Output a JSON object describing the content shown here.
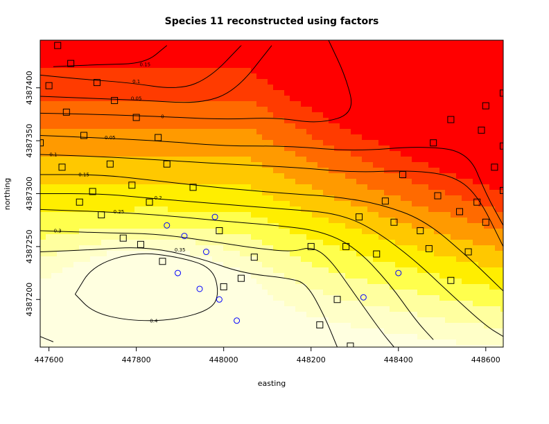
{
  "chart_data": {
    "type": "heatmap",
    "title": "Species 11 reconstructed using factors",
    "xlabel": "easting",
    "ylabel": "northing",
    "xlim": [
      447580,
      448640
    ],
    "ylim": [
      4387155,
      4387445
    ],
    "x_ticks": [
      447600,
      447800,
      448000,
      448200,
      448400,
      448600
    ],
    "y_ticks": [
      4387200,
      4387250,
      4387300,
      4387350,
      4387400
    ],
    "grid": false,
    "color_ramp": [
      "#ff0000",
      "#ff3b00",
      "#ff6a00",
      "#ff9a00",
      "#ffc800",
      "#ffee00",
      "#ffff4d",
      "#ffff9f",
      "#ffffc8",
      "#ffffe0"
    ],
    "contours": [
      {
        "level": "0.15",
        "label": "0.15",
        "points": [
          [
            447610,
            4387420
          ],
          [
            447720,
            4387422
          ],
          [
            447820,
            4387423
          ],
          [
            447870,
            4387440
          ]
        ],
        "label_at": [
          447820,
          4387422
        ]
      },
      {
        "level": "0.1",
        "label": "0.1",
        "points": [
          [
            447580,
            4387412
          ],
          [
            447680,
            4387408
          ],
          [
            447780,
            4387405
          ],
          [
            447900,
            4387398
          ],
          [
            447970,
            4387410
          ],
          [
            448040,
            4387440
          ]
        ],
        "label_at": [
          447800,
          4387406
        ]
      },
      {
        "level": "0.05",
        "label": "0.05",
        "points": [
          [
            447580,
            4387392
          ],
          [
            447700,
            4387390
          ],
          [
            447820,
            4387388
          ],
          [
            447950,
            4387385
          ],
          [
            448030,
            4387398
          ],
          [
            448110,
            4387440
          ]
        ],
        "label_at": [
          447800,
          4387390
        ]
      },
      {
        "level": "0",
        "label": "0",
        "points": [
          [
            447580,
            4387376
          ],
          [
            447700,
            4387375
          ],
          [
            447850,
            4387373
          ],
          [
            448000,
            4387370
          ],
          [
            448120,
            4387372
          ],
          [
            448220,
            4387366
          ],
          [
            448300,
            4387376
          ],
          [
            448280,
            4387410
          ],
          [
            448240,
            4387445
          ]
        ],
        "label_at": [
          447860,
          4387373
        ]
      },
      {
        "level": "0.05",
        "label": "0.05",
        "points": [
          [
            447580,
            4387355
          ],
          [
            447700,
            4387353
          ],
          [
            447850,
            4387350
          ],
          [
            448000,
            4387345
          ],
          [
            448150,
            4387345
          ],
          [
            448300,
            4387340
          ],
          [
            448450,
            4387345
          ],
          [
            448560,
            4387340
          ],
          [
            448600,
            4387300
          ],
          [
            448640,
            4387270
          ]
        ],
        "label_at": [
          447740,
          4387353
        ]
      },
      {
        "level": "0.1",
        "label": "0.1",
        "points": [
          [
            447580,
            4387337
          ],
          [
            447720,
            4387335
          ],
          [
            447850,
            4387332
          ],
          [
            448000,
            4387328
          ],
          [
            448160,
            4387325
          ],
          [
            448300,
            4387320
          ],
          [
            448420,
            4387322
          ],
          [
            448520,
            4387318
          ],
          [
            448580,
            4387300
          ],
          [
            448640,
            4387250
          ]
        ],
        "label_at": [
          447610,
          4387337
        ]
      },
      {
        "level": "0.15",
        "label": "0.15",
        "points": [
          [
            447580,
            4387318
          ],
          [
            447720,
            4387318
          ],
          [
            447850,
            4387312
          ],
          [
            448000,
            4387305
          ],
          [
            448150,
            4387300
          ],
          [
            448260,
            4387297
          ],
          [
            448360,
            4387290
          ],
          [
            448460,
            4387275
          ],
          [
            448560,
            4387240
          ],
          [
            448640,
            4387208
          ]
        ],
        "label_at": [
          447680,
          4387318
        ]
      },
      {
        "level": "0.2",
        "label": "0.2",
        "points": [
          [
            447580,
            4387300
          ],
          [
            447720,
            4387300
          ],
          [
            447850,
            4387295
          ],
          [
            448000,
            4387290
          ],
          [
            448150,
            4387285
          ],
          [
            448250,
            4387282
          ],
          [
            448330,
            4387270
          ],
          [
            448430,
            4387240
          ],
          [
            448520,
            4387205
          ],
          [
            448600,
            4387175
          ],
          [
            448640,
            4387165
          ]
        ],
        "label_at": [
          447850,
          4387296
        ]
      },
      {
        "level": "0.25",
        "label": "0.25",
        "points": [
          [
            447580,
            4387285
          ],
          [
            447720,
            4387283
          ],
          [
            447850,
            4387280
          ],
          [
            448000,
            4387274
          ],
          [
            448120,
            4387270
          ],
          [
            448220,
            4387265
          ],
          [
            448300,
            4387250
          ],
          [
            448380,
            4387215
          ],
          [
            448440,
            4387180
          ],
          [
            448480,
            4387162
          ]
        ],
        "label_at": [
          447760,
          4387283
        ]
      },
      {
        "level": "0.3",
        "label": "0.3",
        "points": [
          [
            447580,
            4387265
          ],
          [
            447720,
            4387263
          ],
          [
            447850,
            4387262
          ],
          [
            447970,
            4387255
          ],
          [
            448080,
            4387248
          ],
          [
            448160,
            4387245
          ],
          [
            448200,
            4387250
          ],
          [
            448240,
            4387240
          ],
          [
            448300,
            4387205
          ],
          [
            448360,
            4387170
          ],
          [
            448390,
            4387155
          ]
        ],
        "label_at": [
          447620,
          4387265
        ]
      },
      {
        "level": "0.35",
        "label": "0.35",
        "points": [
          [
            447580,
            4387245
          ],
          [
            447700,
            4387247
          ],
          [
            447820,
            4387250
          ],
          [
            447940,
            4387240
          ],
          [
            448040,
            4387225
          ],
          [
            448150,
            4387220
          ],
          [
            448190,
            4387215
          ],
          [
            448230,
            4387185
          ],
          [
            448260,
            4387155
          ]
        ],
        "label_at": [
          447900,
          4387247
        ]
      },
      {
        "level": "0.4",
        "label": "0.4",
        "points": [
          [
            447660,
            4387205
          ],
          [
            447700,
            4387232
          ],
          [
            447800,
            4387245
          ],
          [
            447900,
            4387240
          ],
          [
            447975,
            4387230
          ],
          [
            447990,
            4387205
          ],
          [
            447970,
            4387190
          ],
          [
            447880,
            4387180
          ],
          [
            447780,
            4387180
          ],
          [
            447700,
            4387188
          ],
          [
            447660,
            4387205
          ]
        ],
        "label_at": [
          447840,
          4387180
        ]
      },
      {
        "level": "",
        "label": "",
        "points": [
          [
            447580,
            4387165
          ],
          [
            447610,
            4387160
          ]
        ],
        "label_at": null
      }
    ],
    "squares": [
      [
        447620,
        4387440
      ],
      [
        447650,
        4387423
      ],
      [
        447600,
        4387402
      ],
      [
        447710,
        4387405
      ],
      [
        447750,
        4387388
      ],
      [
        447640,
        4387377
      ],
      [
        447800,
        4387372
      ],
      [
        447680,
        4387355
      ],
      [
        447580,
        4387348
      ],
      [
        447850,
        4387353
      ],
      [
        447740,
        4387328
      ],
      [
        447630,
        4387325
      ],
      [
        447870,
        4387328
      ],
      [
        447790,
        4387308
      ],
      [
        447700,
        4387302
      ],
      [
        447930,
        4387306
      ],
      [
        447830,
        4387292
      ],
      [
        447670,
        4387292
      ],
      [
        447720,
        4387280
      ],
      [
        447990,
        4387265
      ],
      [
        447770,
        4387258
      ],
      [
        447810,
        4387252
      ],
      [
        448070,
        4387240
      ],
      [
        448200,
        4387250
      ],
      [
        448280,
        4387250
      ],
      [
        448040,
        4387220
      ],
      [
        447860,
        4387236
      ],
      [
        448000,
        4387212
      ],
      [
        448260,
        4387200
      ],
      [
        448220,
        4387176
      ],
      [
        448290,
        4387156
      ],
      [
        448310,
        4387278
      ],
      [
        448350,
        4387243
      ],
      [
        448370,
        4387293
      ],
      [
        448390,
        4387273
      ],
      [
        448410,
        4387318
      ],
      [
        448450,
        4387265
      ],
      [
        448470,
        4387248
      ],
      [
        448490,
        4387298
      ],
      [
        448520,
        4387218
      ],
      [
        448540,
        4387283
      ],
      [
        448560,
        4387245
      ],
      [
        448580,
        4387292
      ],
      [
        448600,
        4387273
      ],
      [
        448620,
        4387325
      ],
      [
        448640,
        4387303
      ],
      [
        448640,
        4387345
      ],
      [
        448590,
        4387360
      ],
      [
        448640,
        4387395
      ],
      [
        448600,
        4387383
      ],
      [
        448520,
        4387370
      ],
      [
        448480,
        4387348
      ]
    ],
    "circles": [
      [
        447870,
        4387270
      ],
      [
        447910,
        4387260
      ],
      [
        447980,
        4387278
      ],
      [
        447960,
        4387245
      ],
      [
        447895,
        4387225
      ],
      [
        447945,
        4387210
      ],
      [
        447990,
        4387200
      ],
      [
        448030,
        4387180
      ],
      [
        448320,
        4387202
      ],
      [
        448400,
        4387225
      ]
    ]
  }
}
